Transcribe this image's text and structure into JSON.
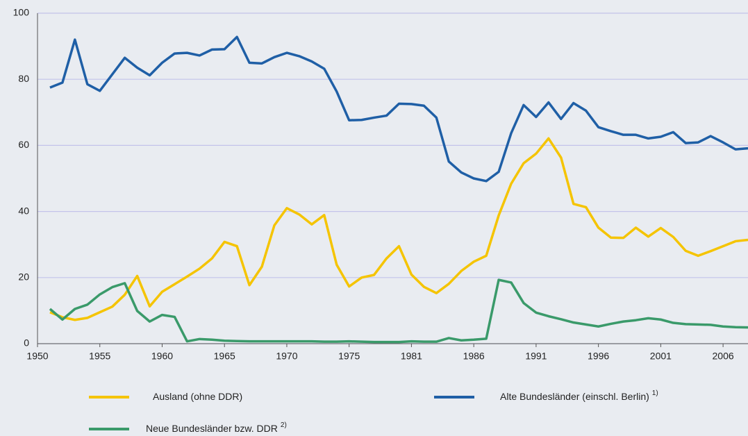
{
  "chart_data": {
    "type": "line",
    "categories": [
      "1950",
      null,
      null,
      null,
      null,
      "1955",
      null,
      null,
      null,
      null,
      "1960",
      null,
      null,
      null,
      null,
      "1965",
      null,
      null,
      null,
      null,
      "1970",
      null,
      null,
      null,
      null,
      "1975",
      null,
      null,
      null,
      null,
      "1981",
      null,
      null,
      null,
      null,
      "1986",
      null,
      null,
      null,
      null,
      "1991",
      null,
      null,
      null,
      null,
      "1996",
      null,
      null,
      null,
      null,
      "2001",
      null,
      null,
      null,
      null,
      "2006",
      null,
      null
    ],
    "series": [
      {
        "name": "Ausland (ohne DDR)",
        "color": "#f5c400",
        "values": [
          null,
          9.5,
          8,
          7.2,
          7.8,
          9.5,
          11.2,
          14.8,
          20.5,
          11.3,
          15.7,
          18,
          20.3,
          22.7,
          25.8,
          30.8,
          29.5,
          17.7,
          23.3,
          35.8,
          41,
          39.1,
          36.1,
          38.9,
          23.9,
          17.3,
          20,
          20.8,
          25.8,
          29.5,
          20.9,
          17.2,
          15.3,
          18.1,
          22,
          24.8,
          26.6,
          38.8,
          48.4,
          54.6,
          57.5,
          62.1,
          56.3,
          42.3,
          41.3,
          35.1,
          32.1,
          32,
          35.1,
          32.4,
          35,
          32.3,
          28.1,
          26.6,
          28,
          29.5,
          31,
          31.4
        ]
      },
      {
        "name": "Alte Bundesländer (einschl. Berlin)",
        "note": "1)",
        "color": "#1f5fa6",
        "values": [
          null,
          77.5,
          79,
          92,
          78.5,
          76.5,
          81.5,
          86.5,
          83.5,
          81.2,
          85,
          87.8,
          88,
          87.2,
          89,
          89.1,
          92.8,
          85,
          84.8,
          86.7,
          88,
          87,
          85.4,
          83.2,
          76.3,
          67.6,
          67.7,
          68.4,
          69,
          72.6,
          72.5,
          72,
          68.4,
          55.1,
          51.8,
          50,
          49.2,
          52,
          63.7,
          72.2,
          68.6,
          73,
          68,
          72.8,
          70.5,
          65.5,
          64.3,
          63.2,
          63.2,
          62.1,
          62.6,
          64,
          60.7,
          60.9,
          62.8,
          60.9,
          58.8,
          59.1
        ]
      },
      {
        "name": "Neue Bundesländer bzw. DDR",
        "note": "2)",
        "color": "#3a9a6a",
        "values": [
          null,
          10.5,
          7.3,
          10.5,
          11.8,
          14.9,
          17.1,
          18.3,
          9.9,
          6.7,
          8.7,
          8.1,
          0.7,
          1.4,
          1.2,
          0.9,
          0.8,
          0.7,
          0.7,
          0.7,
          0.7,
          0.7,
          0.7,
          0.6,
          0.6,
          0.7,
          0.6,
          0.5,
          0.5,
          0.5,
          0.7,
          0.6,
          0.6,
          1.7,
          1,
          1.2,
          1.5,
          19.3,
          18.5,
          12.3,
          9.4,
          8.3,
          7.4,
          6.4,
          5.8,
          5.2,
          6,
          6.7,
          7.1,
          7.7,
          7.3,
          6.3,
          5.9,
          5.8,
          5.7,
          5.2,
          5,
          4.9
        ]
      }
    ],
    "ylim": [
      0,
      100
    ],
    "yticks": [
      0,
      20,
      40,
      60,
      80,
      100
    ],
    "grid": true
  }
}
